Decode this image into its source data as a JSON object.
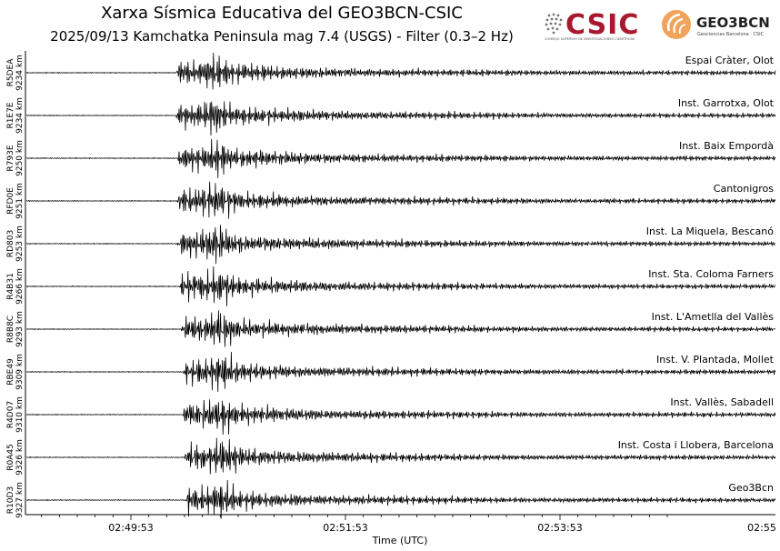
{
  "header": {
    "title": "Xarxa Sísmica Educativa del GEO3BCN-CSIC",
    "subtitle": "2025/09/13 Kamchatka Peninsula mag 7.4 (USGS) - Filter (0.3–2 Hz)"
  },
  "logos": {
    "csic_text": "CSIC",
    "csic_caption": "CONSEJO SUPERIOR DE INVESTIGACIONES CIENTÍFICAS",
    "geo3bcn_text": "GEO3BCN",
    "geo3bcn_caption": "Geociencias Barcelona · CSIC",
    "csic_color": "#a8192e",
    "geo3bcn_color": "#f0a35a"
  },
  "chart_data": {
    "type": "line",
    "title": "Xarxa Sísmica Educativa del GEO3BCN-CSIC",
    "subtitle": "2025/09/13 Kamchatka Peninsula mag 7.4 (USGS) - Filter (0.3–2 Hz)",
    "xlabel": "Time (UTC)",
    "x_ticks": [
      "02:49:53",
      "02:51:53",
      "02:53:53",
      "02:55"
    ],
    "x_range_seconds_from_first_tick": [
      -60,
      300
    ],
    "grid": false,
    "legend": "none",
    "line_color": "#000000",
    "signal_arrival_seconds_from_first_tick": 27,
    "traces": [
      {
        "station": "R5DEA",
        "distance": "9234 km",
        "site": "Espai Cràter, Olot",
        "arrival_s": 25,
        "peak_s": 47
      },
      {
        "station": "R1E7E",
        "distance": "9234 km",
        "site": "Inst. Garrotxa, Olot",
        "arrival_s": 25,
        "peak_s": 47
      },
      {
        "station": "R793E",
        "distance": "9250 km",
        "site": "Inst. Baix Empordà",
        "arrival_s": 26,
        "peak_s": 48
      },
      {
        "station": "RFD0E",
        "distance": "9251 km",
        "site": "Cantonigros",
        "arrival_s": 26,
        "peak_s": 48
      },
      {
        "station": "RD803",
        "distance": "9253 km",
        "site": "Inst. La Miquela, Bescanó",
        "arrival_s": 26,
        "peak_s": 48
      },
      {
        "station": "R4B31",
        "distance": "9266 km",
        "site": "Inst. Sta. Coloma Farners",
        "arrival_s": 27,
        "peak_s": 49
      },
      {
        "station": "R8B8C",
        "distance": "9293 km",
        "site": "Inst. L'Ametlla del Vallès",
        "arrival_s": 28,
        "peak_s": 50
      },
      {
        "station": "RBE49",
        "distance": "9309 km",
        "site": "Inst. V. Plantada, Mollet",
        "arrival_s": 29,
        "peak_s": 51
      },
      {
        "station": "R4D07",
        "distance": "9310 km",
        "site": "Inst. Vallès, Sabadell",
        "arrival_s": 29,
        "peak_s": 51
      },
      {
        "station": "R0A45",
        "distance": "9326 km",
        "site": "Inst. Costa i Llobera, Barcelona",
        "arrival_s": 30,
        "peak_s": 52
      },
      {
        "station": "R10D3",
        "distance": "9327 km",
        "site": "Geo3Bcn",
        "arrival_s": 30,
        "peak_s": 52
      }
    ]
  }
}
